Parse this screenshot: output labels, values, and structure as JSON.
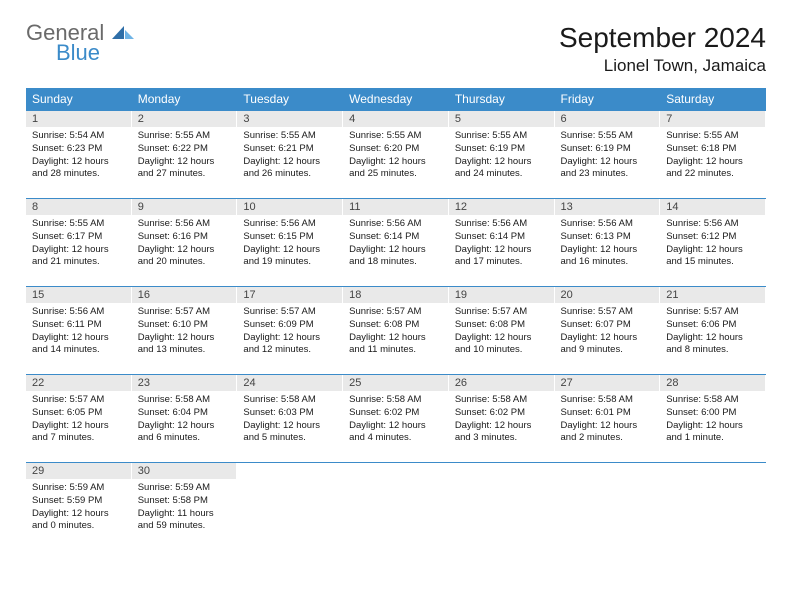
{
  "logo": {
    "text_gray": "General",
    "text_blue": "Blue"
  },
  "title": "September 2024",
  "location": "Lionel Town, Jamaica",
  "colors": {
    "header_bg": "#3b8bc9",
    "daynum_bg": "#e9e9e9",
    "border": "#3b8bc9",
    "text": "#1a1a1a",
    "logo_gray": "#6a6a6a",
    "logo_blue": "#3b8bc9"
  },
  "day_headers": [
    "Sunday",
    "Monday",
    "Tuesday",
    "Wednesday",
    "Thursday",
    "Friday",
    "Saturday"
  ],
  "weeks": [
    [
      {
        "n": "1",
        "sunrise": "5:54 AM",
        "sunset": "6:23 PM",
        "dl1": "Daylight: 12 hours",
        "dl2": "and 28 minutes."
      },
      {
        "n": "2",
        "sunrise": "5:55 AM",
        "sunset": "6:22 PM",
        "dl1": "Daylight: 12 hours",
        "dl2": "and 27 minutes."
      },
      {
        "n": "3",
        "sunrise": "5:55 AM",
        "sunset": "6:21 PM",
        "dl1": "Daylight: 12 hours",
        "dl2": "and 26 minutes."
      },
      {
        "n": "4",
        "sunrise": "5:55 AM",
        "sunset": "6:20 PM",
        "dl1": "Daylight: 12 hours",
        "dl2": "and 25 minutes."
      },
      {
        "n": "5",
        "sunrise": "5:55 AM",
        "sunset": "6:19 PM",
        "dl1": "Daylight: 12 hours",
        "dl2": "and 24 minutes."
      },
      {
        "n": "6",
        "sunrise": "5:55 AM",
        "sunset": "6:19 PM",
        "dl1": "Daylight: 12 hours",
        "dl2": "and 23 minutes."
      },
      {
        "n": "7",
        "sunrise": "5:55 AM",
        "sunset": "6:18 PM",
        "dl1": "Daylight: 12 hours",
        "dl2": "and 22 minutes."
      }
    ],
    [
      {
        "n": "8",
        "sunrise": "5:55 AM",
        "sunset": "6:17 PM",
        "dl1": "Daylight: 12 hours",
        "dl2": "and 21 minutes."
      },
      {
        "n": "9",
        "sunrise": "5:56 AM",
        "sunset": "6:16 PM",
        "dl1": "Daylight: 12 hours",
        "dl2": "and 20 minutes."
      },
      {
        "n": "10",
        "sunrise": "5:56 AM",
        "sunset": "6:15 PM",
        "dl1": "Daylight: 12 hours",
        "dl2": "and 19 minutes."
      },
      {
        "n": "11",
        "sunrise": "5:56 AM",
        "sunset": "6:14 PM",
        "dl1": "Daylight: 12 hours",
        "dl2": "and 18 minutes."
      },
      {
        "n": "12",
        "sunrise": "5:56 AM",
        "sunset": "6:14 PM",
        "dl1": "Daylight: 12 hours",
        "dl2": "and 17 minutes."
      },
      {
        "n": "13",
        "sunrise": "5:56 AM",
        "sunset": "6:13 PM",
        "dl1": "Daylight: 12 hours",
        "dl2": "and 16 minutes."
      },
      {
        "n": "14",
        "sunrise": "5:56 AM",
        "sunset": "6:12 PM",
        "dl1": "Daylight: 12 hours",
        "dl2": "and 15 minutes."
      }
    ],
    [
      {
        "n": "15",
        "sunrise": "5:56 AM",
        "sunset": "6:11 PM",
        "dl1": "Daylight: 12 hours",
        "dl2": "and 14 minutes."
      },
      {
        "n": "16",
        "sunrise": "5:57 AM",
        "sunset": "6:10 PM",
        "dl1": "Daylight: 12 hours",
        "dl2": "and 13 minutes."
      },
      {
        "n": "17",
        "sunrise": "5:57 AM",
        "sunset": "6:09 PM",
        "dl1": "Daylight: 12 hours",
        "dl2": "and 12 minutes."
      },
      {
        "n": "18",
        "sunrise": "5:57 AM",
        "sunset": "6:08 PM",
        "dl1": "Daylight: 12 hours",
        "dl2": "and 11 minutes."
      },
      {
        "n": "19",
        "sunrise": "5:57 AM",
        "sunset": "6:08 PM",
        "dl1": "Daylight: 12 hours",
        "dl2": "and 10 minutes."
      },
      {
        "n": "20",
        "sunrise": "5:57 AM",
        "sunset": "6:07 PM",
        "dl1": "Daylight: 12 hours",
        "dl2": "and 9 minutes."
      },
      {
        "n": "21",
        "sunrise": "5:57 AM",
        "sunset": "6:06 PM",
        "dl1": "Daylight: 12 hours",
        "dl2": "and 8 minutes."
      }
    ],
    [
      {
        "n": "22",
        "sunrise": "5:57 AM",
        "sunset": "6:05 PM",
        "dl1": "Daylight: 12 hours",
        "dl2": "and 7 minutes."
      },
      {
        "n": "23",
        "sunrise": "5:58 AM",
        "sunset": "6:04 PM",
        "dl1": "Daylight: 12 hours",
        "dl2": "and 6 minutes."
      },
      {
        "n": "24",
        "sunrise": "5:58 AM",
        "sunset": "6:03 PM",
        "dl1": "Daylight: 12 hours",
        "dl2": "and 5 minutes."
      },
      {
        "n": "25",
        "sunrise": "5:58 AM",
        "sunset": "6:02 PM",
        "dl1": "Daylight: 12 hours",
        "dl2": "and 4 minutes."
      },
      {
        "n": "26",
        "sunrise": "5:58 AM",
        "sunset": "6:02 PM",
        "dl1": "Daylight: 12 hours",
        "dl2": "and 3 minutes."
      },
      {
        "n": "27",
        "sunrise": "5:58 AM",
        "sunset": "6:01 PM",
        "dl1": "Daylight: 12 hours",
        "dl2": "and 2 minutes."
      },
      {
        "n": "28",
        "sunrise": "5:58 AM",
        "sunset": "6:00 PM",
        "dl1": "Daylight: 12 hours",
        "dl2": "and 1 minute."
      }
    ],
    [
      {
        "n": "29",
        "sunrise": "5:59 AM",
        "sunset": "5:59 PM",
        "dl1": "Daylight: 12 hours",
        "dl2": "and 0 minutes."
      },
      {
        "n": "30",
        "sunrise": "5:59 AM",
        "sunset": "5:58 PM",
        "dl1": "Daylight: 11 hours",
        "dl2": "and 59 minutes."
      },
      null,
      null,
      null,
      null,
      null
    ]
  ],
  "labels": {
    "sunrise_prefix": "Sunrise: ",
    "sunset_prefix": "Sunset: "
  }
}
